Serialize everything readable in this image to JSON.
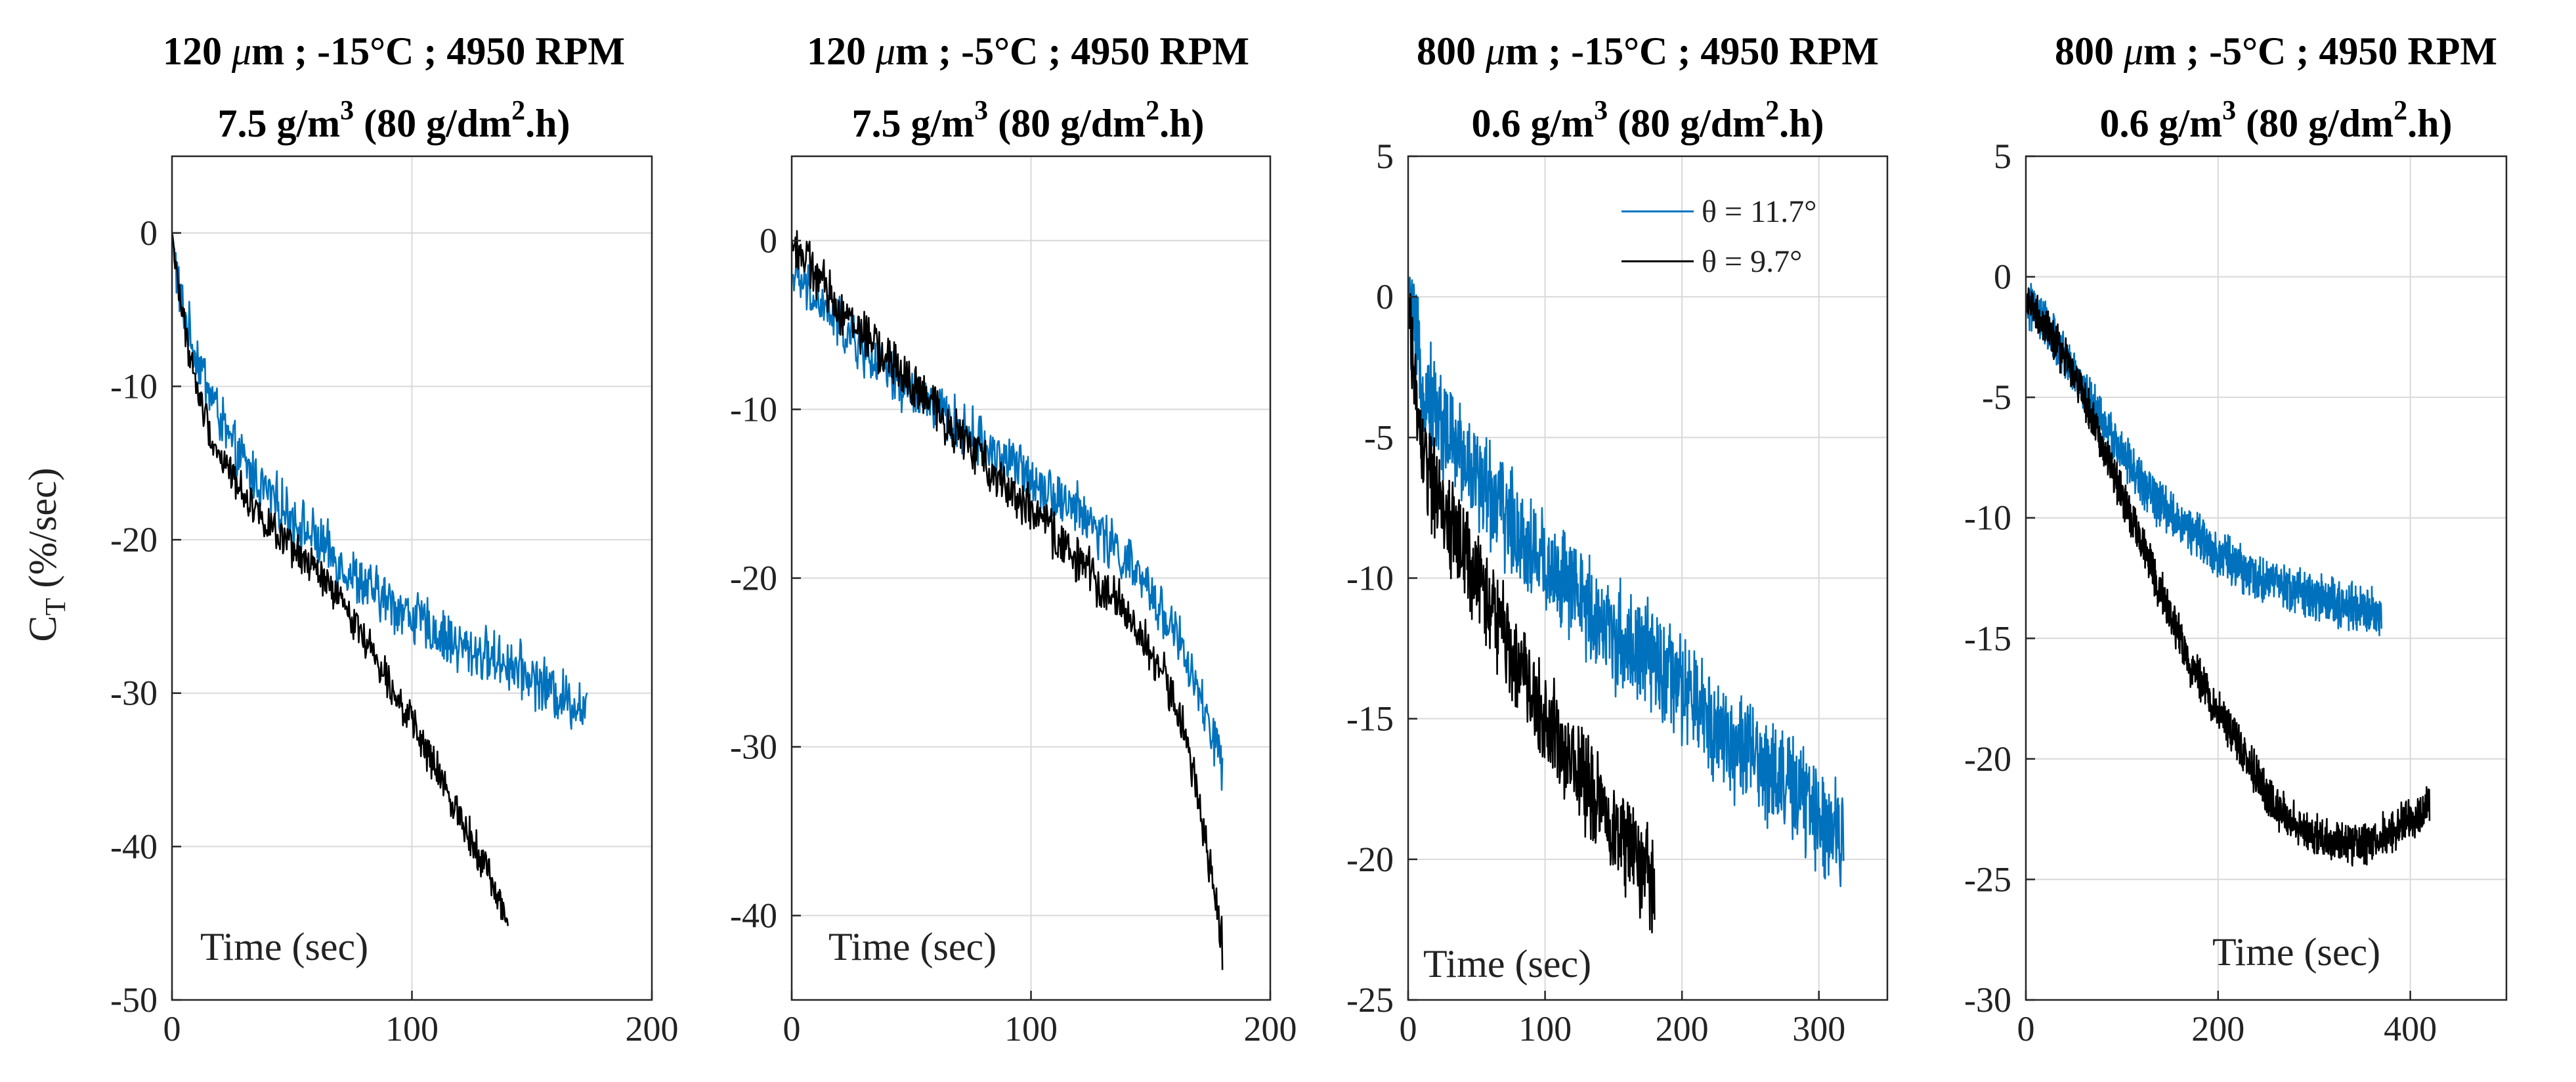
{
  "y_axis_label": {
    "main": "C",
    "sub": "T",
    "unit": " (%/sec)"
  },
  "chart_data": [
    {
      "type": "line",
      "title": [
        "120 μm ; -15°C ; 4950 RPM",
        "7.5 g/m³ (80 g/dm².h)"
      ],
      "title_parts": {
        "line1": {
          "pre": "120 ",
          "mu": "μ",
          "post": "m ; -15°C ; 4950 RPM"
        },
        "line2": {
          "a": "7.5 g/m",
          "sup1": "3",
          "b": " (80 g/dm",
          "sup2": "2",
          "c": ".h)"
        }
      },
      "xlabel": "Time (sec)",
      "ylabel": "C_T (%/sec)",
      "xlim": [
        0,
        200
      ],
      "ylim": [
        -50,
        5
      ],
      "xticks": [
        0,
        100,
        200
      ],
      "yticks": [
        0,
        -10,
        -20,
        -30,
        -40,
        -50
      ],
      "series": [
        {
          "name": "θ = 11.7°",
          "color": "#0072BD",
          "x_end": 173,
          "knots": [
            [
              0,
              0
            ],
            [
              3,
              -4
            ],
            [
              8,
              -7
            ],
            [
              15,
              -10
            ],
            [
              25,
              -14
            ],
            [
              40,
              -17
            ],
            [
              60,
              -20
            ],
            [
              80,
              -23
            ],
            [
              100,
              -25
            ],
            [
              120,
              -27
            ],
            [
              140,
              -28
            ],
            [
              160,
              -30
            ],
            [
              173,
              -31
            ]
          ],
          "noise": 1.5
        },
        {
          "name": "θ = 9.7°",
          "color": "#000000",
          "x_end": 140,
          "knots": [
            [
              0,
              0
            ],
            [
              4,
              -5
            ],
            [
              10,
              -10
            ],
            [
              18,
              -14
            ],
            [
              30,
              -17
            ],
            [
              45,
              -20
            ],
            [
              60,
              -22
            ],
            [
              75,
              -25
            ],
            [
              90,
              -29
            ],
            [
              100,
              -32
            ],
            [
              110,
              -35
            ],
            [
              120,
              -38
            ],
            [
              130,
              -41
            ],
            [
              140,
              -45
            ]
          ],
          "noise": 1.0
        }
      ]
    },
    {
      "type": "line",
      "title": [
        "120 μm ; -5°C ; 4950 RPM",
        "7.5 g/m³ (80 g/dm².h)"
      ],
      "title_parts": {
        "line1": {
          "pre": "120 ",
          "mu": "μ",
          "post": "m ; -5°C ; 4950 RPM"
        },
        "line2": {
          "a": "7.5 g/m",
          "sup1": "3",
          "b": " (80 g/dm",
          "sup2": "2",
          "c": ".h)"
        }
      },
      "xlabel": "Time (sec)",
      "ylabel": "",
      "xlim": [
        0,
        200
      ],
      "ylim": [
        -45,
        5
      ],
      "xticks": [
        0,
        100,
        200
      ],
      "yticks": [
        0,
        -10,
        -20,
        -30,
        -40
      ],
      "series": [
        {
          "name": "θ = 11.7°",
          "color": "#0072BD",
          "x_end": 180,
          "knots": [
            [
              0,
              -2
            ],
            [
              20,
              -5
            ],
            [
              40,
              -8
            ],
            [
              60,
              -10
            ],
            [
              80,
              -12
            ],
            [
              100,
              -14
            ],
            [
              120,
              -16
            ],
            [
              140,
              -19
            ],
            [
              160,
              -23
            ],
            [
              170,
              -27
            ],
            [
              180,
              -31
            ]
          ],
          "noise": 1.3
        },
        {
          "name": "θ = 9.7°",
          "color": "#000000",
          "x_end": 180,
          "knots": [
            [
              0,
              0
            ],
            [
              20,
              -4
            ],
            [
              40,
              -7
            ],
            [
              60,
              -10
            ],
            [
              80,
              -13
            ],
            [
              100,
              -16
            ],
            [
              120,
              -19
            ],
            [
              140,
              -22
            ],
            [
              160,
              -27
            ],
            [
              170,
              -33
            ],
            [
              175,
              -37
            ],
            [
              180,
              -42
            ]
          ],
          "noise": 1.2
        }
      ]
    },
    {
      "type": "line",
      "title": [
        "800 μm ; -15°C ; 4950 RPM",
        "0.6 g/m³ (80 g/dm².h)"
      ],
      "title_parts": {
        "line1": {
          "pre": "800 ",
          "mu": "μ",
          "post": "m ; -15°C ; 4950 RPM"
        },
        "line2": {
          "a": "0.6 g/m",
          "sup1": "3",
          "b": " (80 g/dm",
          "sup2": "2",
          "c": ".h)"
        }
      },
      "xlabel": "Time (sec)",
      "ylabel": "",
      "xlim": [
        0,
        350
      ],
      "ylim": [
        -25,
        5
      ],
      "xticks": [
        0,
        100,
        200,
        300
      ],
      "yticks": [
        5,
        0,
        -5,
        -10,
        -15,
        -20,
        -25
      ],
      "legend": {
        "location": "top-right",
        "entries": [
          "θ = 11.7°",
          "θ = 9.7°"
        ]
      },
      "series": [
        {
          "name": "θ = 11.7°",
          "color": "#0072BD",
          "x_end": 318,
          "knots": [
            [
              0,
              0
            ],
            [
              10,
              -3
            ],
            [
              30,
              -5
            ],
            [
              60,
              -7
            ],
            [
              90,
              -9
            ],
            [
              120,
              -10.5
            ],
            [
              150,
              -12
            ],
            [
              180,
              -13
            ],
            [
              210,
              -14.5
            ],
            [
              240,
              -16
            ],
            [
              270,
              -17
            ],
            [
              300,
              -18.5
            ],
            [
              318,
              -19
            ]
          ],
          "noise": 1.6
        },
        {
          "name": "θ = 9.7°",
          "color": "#000000",
          "x_end": 180,
          "knots": [
            [
              0,
              0
            ],
            [
              8,
              -5
            ],
            [
              20,
              -7
            ],
            [
              40,
              -9
            ],
            [
              60,
              -11
            ],
            [
              80,
              -13
            ],
            [
              100,
              -15
            ],
            [
              120,
              -16.5
            ],
            [
              140,
              -18
            ],
            [
              160,
              -19.5
            ],
            [
              180,
              -21
            ]
          ],
          "noise": 1.5
        }
      ]
    },
    {
      "type": "line",
      "title": [
        "800 μm ; -5°C ; 4950 RPM",
        "0.6 g/m³ (80 g/dm².h)"
      ],
      "title_parts": {
        "line1": {
          "pre": "800 ",
          "mu": "μ",
          "post": "m ; -5°C ; 4950 RPM"
        },
        "line2": {
          "a": "0.6 g/m",
          "sup1": "3",
          "b": " (80 g/dm",
          "sup2": "2",
          "c": ".h)"
        }
      },
      "xlabel": "Time (sec)",
      "ylabel": "",
      "xlim": [
        0,
        500
      ],
      "ylim": [
        -30,
        5
      ],
      "xticks": [
        0,
        200,
        400
      ],
      "yticks": [
        5,
        0,
        -5,
        -10,
        -15,
        -20,
        -25,
        -30
      ],
      "series": [
        {
          "name": "θ = 11.7°",
          "color": "#0072BD",
          "x_end": 370,
          "knots": [
            [
              0,
              -1
            ],
            [
              20,
              -2
            ],
            [
              50,
              -4
            ],
            [
              80,
              -6
            ],
            [
              110,
              -8
            ],
            [
              140,
              -9.5
            ],
            [
              170,
              -10.5
            ],
            [
              200,
              -11.5
            ],
            [
              240,
              -12.5
            ],
            [
              280,
              -13
            ],
            [
              320,
              -13.5
            ],
            [
              370,
              -14
            ]
          ],
          "noise": 0.8
        },
        {
          "name": "θ = 9.7°",
          "color": "#000000",
          "x_end": 420,
          "knots": [
            [
              0,
              -1
            ],
            [
              20,
              -2
            ],
            [
              50,
              -4
            ],
            [
              80,
              -7
            ],
            [
              110,
              -10
            ],
            [
              140,
              -13
            ],
            [
              170,
              -16
            ],
            [
              200,
              -18
            ],
            [
              230,
              -20
            ],
            [
              260,
              -22
            ],
            [
              290,
              -23
            ],
            [
              320,
              -23.5
            ],
            [
              350,
              -23.5
            ],
            [
              380,
              -23
            ],
            [
              400,
              -22.5
            ],
            [
              420,
              -22
            ]
          ],
          "noise": 0.7
        }
      ]
    }
  ]
}
